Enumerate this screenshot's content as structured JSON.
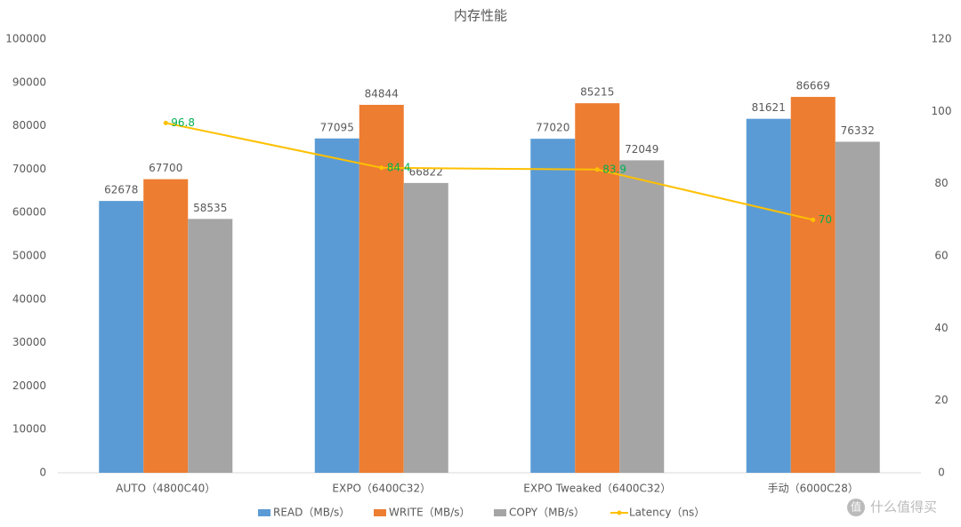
{
  "chart_data": {
    "type": "bar",
    "title": "内存性能",
    "categories": [
      "AUTO（4800C40）",
      "EXPO（6400C32）",
      "EXPO Tweaked（6400C32）",
      "手动（6000C28）"
    ],
    "series": [
      {
        "name": "READ（MB/s）",
        "color": "#5b9bd5",
        "values": [
          62678,
          77095,
          77020,
          81621
        ]
      },
      {
        "name": "WRITE（MB/s）",
        "color": "#ed7d31",
        "values": [
          67700,
          84844,
          85215,
          86669
        ]
      },
      {
        "name": "COPY（MB/s）",
        "color": "#a5a5a5",
        "values": [
          58535,
          66822,
          72049,
          76332
        ]
      },
      {
        "name": "Latency（ns）",
        "color": "#ffc000",
        "type": "line",
        "axis": "y2",
        "label_color": "#00b050",
        "values": [
          96.8,
          84.4,
          83.9,
          70
        ]
      }
    ],
    "ylim": [
      0,
      100000
    ],
    "yticks": [
      0,
      10000,
      20000,
      30000,
      40000,
      50000,
      60000,
      70000,
      80000,
      90000,
      100000
    ],
    "y2lim": [
      0,
      120
    ],
    "y2ticks": [
      0,
      20,
      40,
      60,
      80,
      100,
      120
    ],
    "grid": false,
    "legend": "bottom",
    "watermark_icon": "值",
    "watermark": "什么值得买"
  }
}
